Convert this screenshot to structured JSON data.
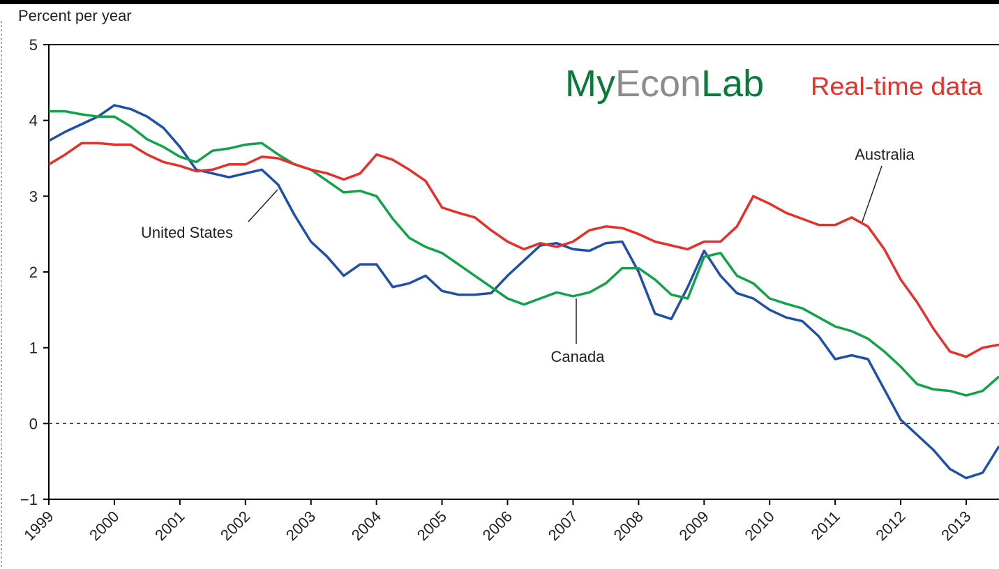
{
  "chart_data": {
    "type": "line",
    "y_label": "Percent per year",
    "logo": [
      "My",
      "Econ",
      "Lab"
    ],
    "badge": "Real-time data",
    "annotations": [
      {
        "text": "United States"
      },
      {
        "text": "Canada"
      },
      {
        "text": "Australia"
      }
    ],
    "x": [
      1999,
      1999.25,
      1999.5,
      1999.75,
      2000,
      2000.25,
      2000.5,
      2000.75,
      2001,
      2001.25,
      2001.5,
      2001.75,
      2002,
      2002.25,
      2002.5,
      2002.75,
      2003,
      2003.25,
      2003.5,
      2003.75,
      2004,
      2004.25,
      2004.5,
      2004.75,
      2005,
      2005.25,
      2005.5,
      2005.75,
      2006,
      2006.25,
      2006.5,
      2006.75,
      2007,
      2007.25,
      2007.5,
      2007.75,
      2008,
      2008.25,
      2008.5,
      2008.75,
      2009,
      2009.25,
      2009.5,
      2009.75,
      2010,
      2010.25,
      2010.5,
      2010.75,
      2011,
      2011.25,
      2011.5,
      2011.75,
      2012,
      2012.25,
      2012.5,
      2012.75,
      2013,
      2013.25,
      2013.5
    ],
    "series": [
      {
        "name": "United States",
        "color": "#1f4fa8",
        "values": [
          3.73,
          3.85,
          3.95,
          4.05,
          4.2,
          4.15,
          4.05,
          3.9,
          3.65,
          3.35,
          3.3,
          3.25,
          3.3,
          3.35,
          3.15,
          2.75,
          2.4,
          2.2,
          1.95,
          2.1,
          2.1,
          1.8,
          1.85,
          1.95,
          1.75,
          1.7,
          1.7,
          1.72,
          1.95,
          2.15,
          2.35,
          2.38,
          2.3,
          2.28,
          2.38,
          2.4,
          2.0,
          1.45,
          1.38,
          1.8,
          2.28,
          1.95,
          1.72,
          1.65,
          1.5,
          1.4,
          1.35,
          1.15,
          0.85,
          0.9,
          0.85,
          0.45,
          0.05,
          -0.15,
          -0.35,
          -0.6,
          -0.72,
          -0.65,
          -0.3
        ]
      },
      {
        "name": "Canada",
        "color": "#12a34a",
        "values": [
          4.12,
          4.12,
          4.08,
          4.05,
          4.05,
          3.92,
          3.75,
          3.65,
          3.52,
          3.45,
          3.6,
          3.63,
          3.68,
          3.7,
          3.55,
          3.42,
          3.35,
          3.2,
          3.05,
          3.07,
          3.0,
          2.7,
          2.45,
          2.33,
          2.25,
          2.1,
          1.95,
          1.8,
          1.65,
          1.57,
          1.65,
          1.73,
          1.68,
          1.73,
          1.85,
          2.05,
          2.05,
          1.9,
          1.7,
          1.65,
          2.2,
          2.25,
          1.95,
          1.85,
          1.65,
          1.58,
          1.52,
          1.4,
          1.28,
          1.22,
          1.12,
          0.95,
          0.75,
          0.52,
          0.45,
          0.43,
          0.37,
          0.43,
          0.62
        ]
      },
      {
        "name": "Australia",
        "color": "#e8302a",
        "values": [
          3.42,
          3.55,
          3.7,
          3.7,
          3.68,
          3.68,
          3.55,
          3.45,
          3.4,
          3.33,
          3.35,
          3.42,
          3.42,
          3.52,
          3.5,
          3.42,
          3.35,
          3.3,
          3.22,
          3.3,
          3.55,
          3.48,
          3.35,
          3.2,
          2.85,
          2.78,
          2.72,
          2.55,
          2.4,
          2.3,
          2.38,
          2.33,
          2.4,
          2.55,
          2.6,
          2.58,
          2.5,
          2.4,
          2.35,
          2.3,
          2.4,
          2.4,
          2.6,
          3.0,
          2.9,
          2.78,
          2.7,
          2.62,
          2.62,
          2.72,
          2.6,
          2.3,
          1.9,
          1.6,
          1.25,
          0.95,
          0.88,
          1.0,
          1.04
        ]
      }
    ],
    "xlim": [
      1999,
      2013.5
    ],
    "xticks": [
      1999,
      2000,
      2001,
      2002,
      2003,
      2004,
      2005,
      2006,
      2007,
      2008,
      2009,
      2010,
      2011,
      2012,
      2013
    ],
    "ylim": [
      -1,
      5
    ],
    "yticks": [
      {
        "value": -1,
        "label": "−1"
      },
      0,
      1,
      2,
      3,
      4,
      5
    ],
    "reference_line": 0,
    "grid": false
  }
}
